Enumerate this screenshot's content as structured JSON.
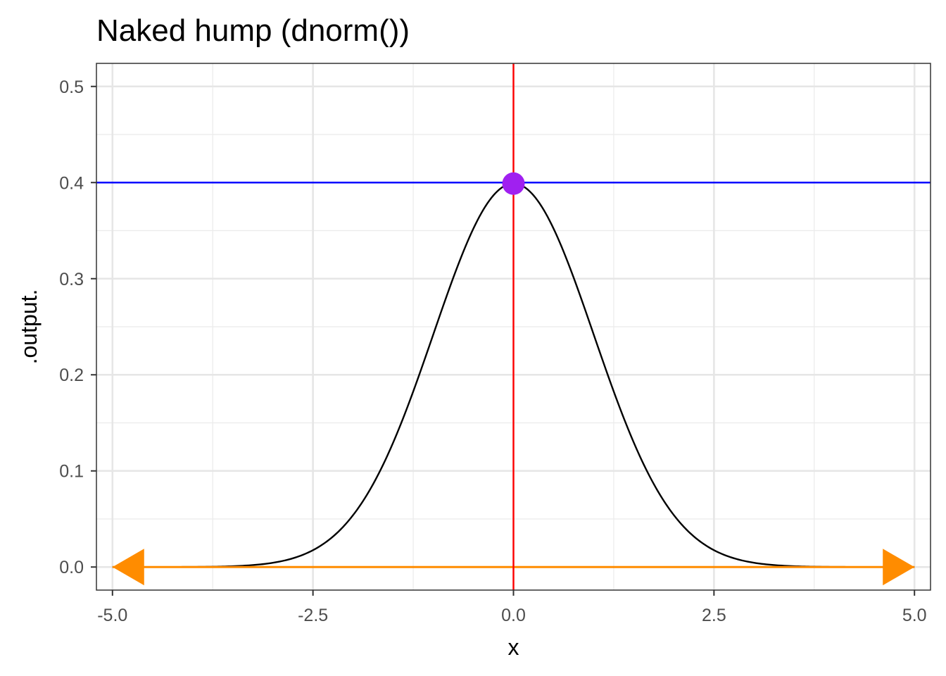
{
  "chart_data": {
    "type": "line",
    "title": "Naked hump (dnorm())",
    "xlabel": "x",
    "ylabel": ".output.",
    "xlim": [
      -5.2,
      5.2
    ],
    "ylim": [
      -0.024,
      0.524
    ],
    "x_ticks": [
      -5.0,
      -2.5,
      0.0,
      2.5,
      5.0
    ],
    "x_tick_labels": [
      "-5.0",
      "-2.5",
      "0.0",
      "2.5",
      "5.0"
    ],
    "x_minor_ticks": [
      -3.75,
      -1.25,
      1.25,
      3.75
    ],
    "y_ticks": [
      0.0,
      0.1,
      0.2,
      0.3,
      0.4,
      0.5
    ],
    "y_tick_labels": [
      "0.0",
      "0.1",
      "0.2",
      "0.3",
      "0.4",
      "0.5"
    ],
    "y_minor_ticks": [
      0.05,
      0.15,
      0.25,
      0.35,
      0.45
    ],
    "grid": true,
    "series": [
      {
        "function": "dnorm",
        "x_range": [
          -5,
          5
        ],
        "color": "#000000"
      }
    ],
    "annotations": {
      "hline": {
        "y": 0.4,
        "color": "#0000ff"
      },
      "vline": {
        "x": 0.0,
        "color": "#ff0000"
      },
      "point": {
        "x": 0.0,
        "y": 0.3989,
        "color": "#a020f0"
      },
      "arrow": {
        "x_from": -5,
        "x_to": 5,
        "y": 0,
        "color": "#ff8c00",
        "heads": "both"
      }
    }
  }
}
